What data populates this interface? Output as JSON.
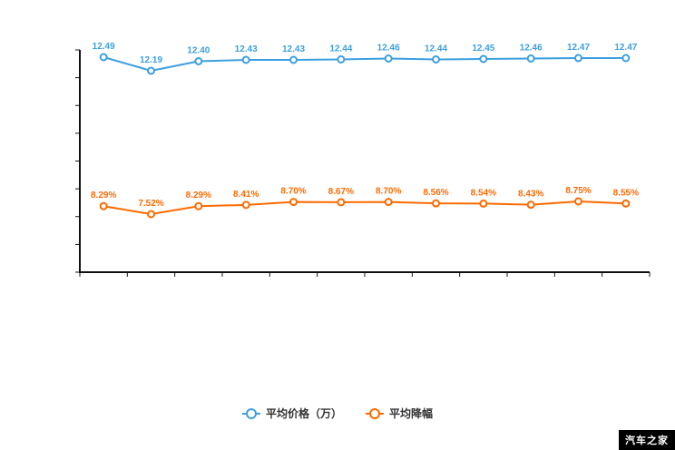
{
  "chart_data": {
    "type": "line",
    "categories": [
      "",
      "",
      "",
      "",
      "",
      "",
      "",
      "",
      "",
      "",
      "",
      ""
    ],
    "x_axis_labels_visible": false,
    "y_axis_labels_visible": false,
    "grid": false,
    "legend_position": "bottom",
    "axis_color": "#111111",
    "series": [
      {
        "name": "平均价格（万）",
        "color": "#3C9FE0",
        "values": [
          12.49,
          12.19,
          12.4,
          12.43,
          12.43,
          12.44,
          12.46,
          12.44,
          12.45,
          12.46,
          12.47,
          12.47
        ],
        "labels": [
          "12.49",
          "12.19",
          "12.40",
          "12.43",
          "12.43",
          "12.44",
          "12.46",
          "12.44",
          "12.45",
          "12.46",
          "12.47",
          "12.47"
        ]
      },
      {
        "name": "平均降幅",
        "color": "#FF6A00",
        "values": [
          8.29,
          7.52,
          8.29,
          8.41,
          8.7,
          8.67,
          8.7,
          8.56,
          8.54,
          8.43,
          8.75,
          8.55
        ],
        "labels": [
          "8.29%",
          "7.52%",
          "8.29%",
          "8.41%",
          "8.70%",
          "8.67%",
          "8.70%",
          "8.56%",
          "8.54%",
          "8.43%",
          "8.75%",
          "8.55%"
        ]
      }
    ]
  },
  "legend": {
    "items": [
      {
        "label": "平均价格（万）",
        "color": "#3C9FE0"
      },
      {
        "label": "平均降幅",
        "color": "#FF6A00"
      }
    ]
  },
  "watermark": {
    "text": "汽车之家",
    "bg": "#000000",
    "fg": "#ffffff"
  }
}
